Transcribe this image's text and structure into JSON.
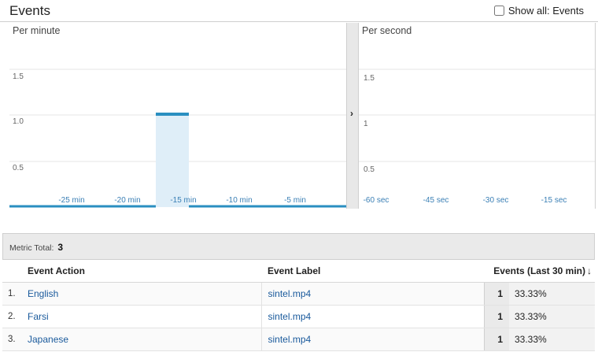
{
  "header": {
    "title": "Events",
    "show_all_label": "Show all: Events"
  },
  "minute_chart": {
    "title": "Per minute",
    "y_ticks": [
      "1.5",
      "1.0",
      "0.5"
    ],
    "x_ticks": [
      "-25 min",
      "-20 min",
      "-15 min",
      "-10 min",
      "-5 min"
    ]
  },
  "second_chart": {
    "title": "Per second",
    "y_ticks": [
      "1.5",
      "1",
      "0.5"
    ],
    "x_ticks": [
      "-60 sec",
      "-45 sec",
      "-30 sec",
      "-15 sec"
    ]
  },
  "divider": {
    "arrow_glyph": "›"
  },
  "metric": {
    "label": "Metric Total:",
    "value": "3"
  },
  "table": {
    "headers": {
      "action": "Event Action",
      "label": "Event Label",
      "events": "Events (Last 30 min)"
    },
    "sort_glyph": "↓",
    "rows": [
      {
        "idx": "1.",
        "action": "English",
        "label": "sintel.mp4",
        "count": "1",
        "pct": "33.33%"
      },
      {
        "idx": "2.",
        "action": "Farsi",
        "label": "sintel.mp4",
        "count": "1",
        "pct": "33.33%"
      },
      {
        "idx": "3.",
        "action": "Japanese",
        "label": "sintel.mp4",
        "count": "1",
        "pct": "33.33%"
      }
    ]
  },
  "colors": {
    "accent": "#2a8fc1",
    "highlight": "#dfeef8",
    "tick_text": "#3a7fb5"
  }
}
